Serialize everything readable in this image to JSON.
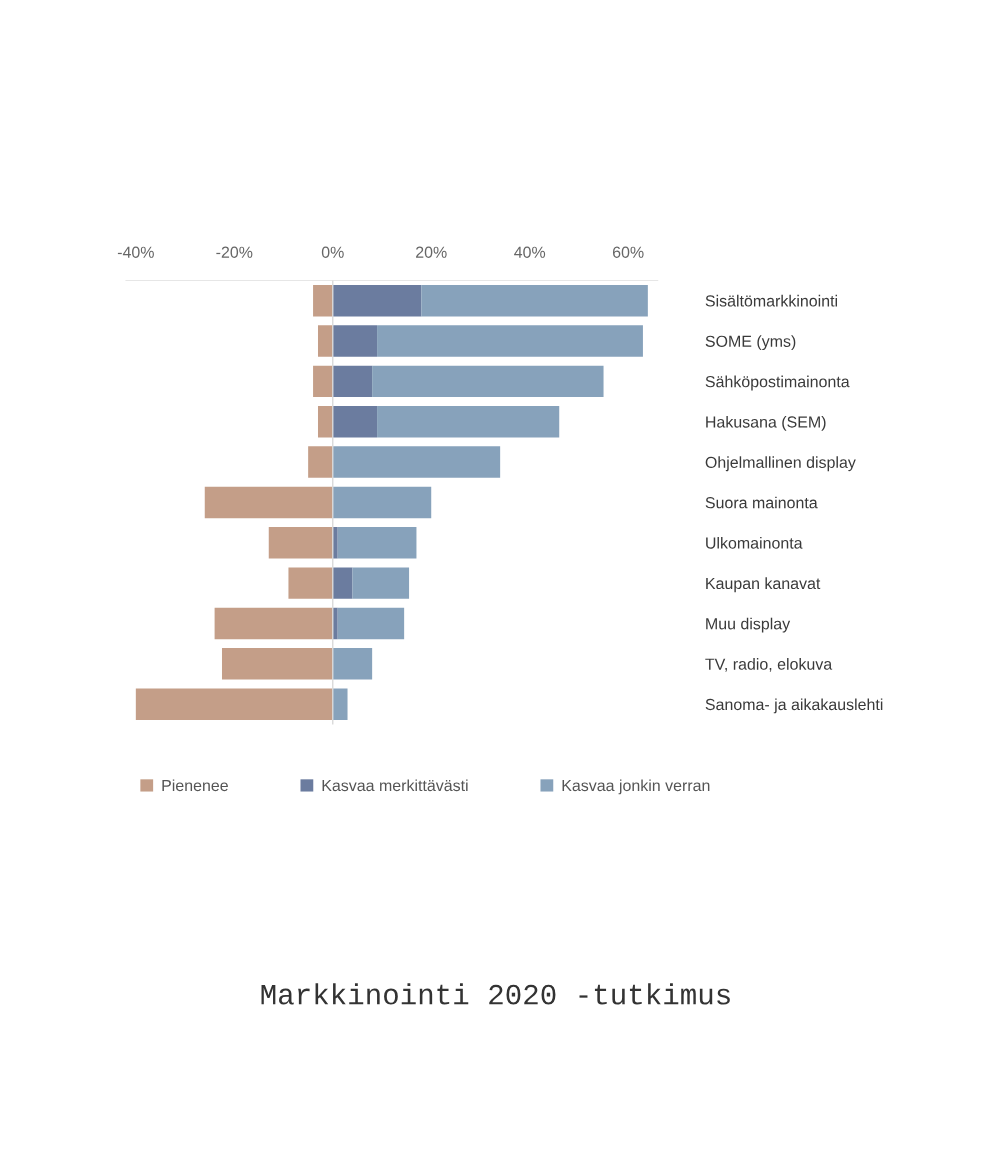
{
  "chart_data": {
    "type": "bar",
    "orientation": "horizontal",
    "stacked": true,
    "categories": [
      "Sisältömarkkinointi",
      "SOME (yms)",
      "Sähköpostimainonta",
      "Hakusana (SEM)",
      "Ohjelmallinen display",
      "Suora mainonta",
      "Ulkomainonta",
      "Kaupan kanavat",
      "Muu display",
      "TV, radio, elokuva",
      "Sanoma- ja aikakauslehti"
    ],
    "series": [
      {
        "name": "Pienenee",
        "color": "#c49e88",
        "values": [
          -4,
          -3,
          -4,
          -3,
          -5,
          -26,
          -13,
          -9,
          -24,
          -22.5,
          -40
        ]
      },
      {
        "name": "Kasvaa merkittävästi",
        "color": "#6b7c9f",
        "values": [
          18,
          9,
          8,
          9,
          0,
          0,
          1,
          4,
          1,
          0,
          0
        ]
      },
      {
        "name": "Kasvaa jonkin verran",
        "color": "#87a2bb",
        "values": [
          46,
          54,
          47,
          37,
          34,
          20,
          16,
          11.5,
          13.5,
          8,
          3
        ]
      }
    ],
    "xlim": [
      -42,
      66
    ],
    "xticks": [
      {
        "value": -40,
        "label": "-40%"
      },
      {
        "value": -20,
        "label": "-20%"
      },
      {
        "value": 0,
        "label": "0%"
      },
      {
        "value": 20,
        "label": "20%"
      },
      {
        "value": 40,
        "label": "40%"
      },
      {
        "value": 60,
        "label": "60%"
      }
    ],
    "ref_lines": [
      {
        "axis": "x",
        "value": 0,
        "color": "#d9d9d9"
      }
    ],
    "grid": false,
    "legend": "bottom",
    "annotations": [
      "Markkinointi 2020 -tutkimus"
    ]
  }
}
